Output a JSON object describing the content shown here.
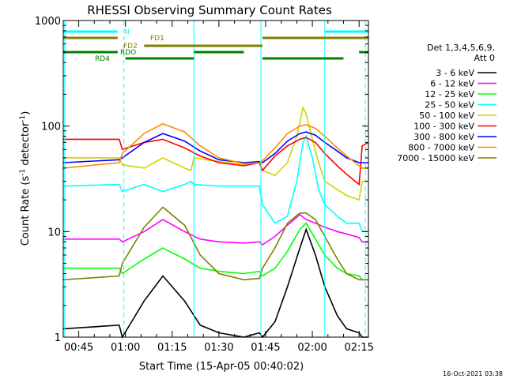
{
  "chart_data": {
    "type": "line",
    "title": "RHESSI Observing Summary Count Rates",
    "xlabel": "Start Time (15-Apr-05 00:40:02)",
    "ylabel": "Count Rate (s⁻¹ detector⁻¹)",
    "ylabel_parts": {
      "main": "Count Rate (s",
      "sup1": "-1",
      "mid": " detector",
      "sup2": "-1",
      "end": ")"
    },
    "yscale": "log",
    "ylim": [
      1,
      1000
    ],
    "xlim_minutes": [
      40.03,
      138.0
    ],
    "x_ticks": [
      {
        "label": "00:45",
        "m": 45
      },
      {
        "label": "01:00",
        "m": 60
      },
      {
        "label": "01:15",
        "m": 75
      },
      {
        "label": "01:30",
        "m": 90
      },
      {
        "label": "01:45",
        "m": 105
      },
      {
        "label": "02:00",
        "m": 120
      },
      {
        "label": "02:15",
        "m": 135
      }
    ],
    "y_ticks": [
      {
        "label": "1",
        "v": 1
      },
      {
        "label": "10",
        "v": 10
      },
      {
        "label": "100",
        "v": 100
      },
      {
        "label": "1000",
        "v": 1000
      }
    ],
    "legend_header": [
      "Det 1,3,4,5,6,9,",
      "Att 0"
    ],
    "legend_position": "right",
    "series": [
      {
        "name": "3 - 6 keV",
        "color": "#000000",
        "band": "3-6",
        "x": [
          40,
          58,
          59,
          66,
          72,
          79,
          84,
          90,
          98,
          103,
          104,
          108,
          112,
          116,
          118,
          121,
          124,
          128,
          131,
          135,
          136,
          138
        ],
        "values": [
          1.2,
          1.3,
          1.0,
          2.2,
          3.8,
          2.2,
          1.3,
          1.1,
          1.0,
          1.1,
          1.0,
          1.4,
          3.0,
          7.0,
          10.5,
          6.0,
          3.0,
          1.6,
          1.2,
          1.1,
          1.0,
          1.0
        ]
      },
      {
        "name": "6 - 12 keV",
        "color": "#ff00ff",
        "band": "6-12",
        "x": [
          40,
          58,
          59,
          66,
          72,
          79,
          84,
          90,
          98,
          103,
          104,
          108,
          112,
          116,
          118,
          121,
          124,
          128,
          131,
          135,
          136,
          138
        ],
        "values": [
          8.5,
          8.5,
          8.0,
          10.0,
          13.0,
          10.0,
          8.5,
          8.0,
          7.8,
          8.0,
          7.5,
          9.0,
          11.5,
          14.5,
          13.0,
          12.0,
          11.0,
          10.0,
          9.5,
          8.8,
          8.0,
          8.0
        ]
      },
      {
        "name": "12 - 25 keV",
        "color": "#00ff00",
        "band": "12-25",
        "x": [
          40,
          58,
          59,
          66,
          72,
          79,
          84,
          90,
          98,
          103,
          104,
          108,
          112,
          116,
          118,
          121,
          124,
          128,
          131,
          135,
          136,
          138
        ],
        "values": [
          4.5,
          4.5,
          4.0,
          5.5,
          7.0,
          5.5,
          4.5,
          4.2,
          4.0,
          4.2,
          3.8,
          4.5,
          6.5,
          10.5,
          12.0,
          8.5,
          6.0,
          4.5,
          4.0,
          3.8,
          3.5,
          3.5
        ]
      },
      {
        "name": "25 - 50 keV",
        "color": "#00ffff",
        "band": "25-50",
        "x": [
          40,
          58,
          59,
          66,
          72,
          79,
          81,
          82,
          90,
          98,
          103,
          104,
          108,
          112,
          115,
          117,
          118,
          120,
          122,
          124,
          128,
          131,
          135,
          136,
          138
        ],
        "values": [
          27,
          28,
          24,
          28,
          24,
          28,
          30,
          28,
          27,
          27,
          27,
          18,
          12,
          14,
          30,
          70,
          80,
          50,
          25,
          18,
          14,
          12,
          12,
          10,
          10
        ]
      },
      {
        "name": "50 - 100 keV",
        "color": "#d2d200",
        "band": "50-100",
        "x": [
          40,
          58,
          59,
          66,
          72,
          79,
          81,
          82,
          90,
          98,
          103,
          104,
          108,
          112,
          115,
          117,
          118,
          120,
          122,
          124,
          128,
          131,
          135,
          136,
          138
        ],
        "values": [
          50,
          50,
          43,
          40,
          50,
          40,
          38,
          50,
          46,
          43,
          45,
          38,
          34,
          45,
          80,
          150,
          130,
          75,
          45,
          30,
          25,
          22,
          20,
          30,
          30
        ]
      },
      {
        "name": "100 - 300 keV",
        "color": "#ff0000",
        "band": "100-300",
        "x": [
          40,
          58,
          59,
          66,
          72,
          79,
          84,
          90,
          98,
          103,
          104,
          108,
          112,
          116,
          118,
          121,
          124,
          128,
          131,
          135,
          136,
          138
        ],
        "values": [
          75,
          75,
          60,
          70,
          75,
          62,
          52,
          45,
          42,
          45,
          38,
          52,
          65,
          75,
          78,
          70,
          55,
          42,
          35,
          28,
          65,
          70
        ]
      },
      {
        "name": "300 - 800 keV",
        "color": "#0000ff",
        "band": "300-800",
        "x": [
          40,
          58,
          59,
          66,
          72,
          79,
          84,
          90,
          98,
          103,
          104,
          108,
          112,
          116,
          118,
          121,
          124,
          128,
          131,
          135,
          136,
          138
        ],
        "values": [
          45,
          48,
          50,
          70,
          85,
          72,
          58,
          48,
          45,
          46,
          45,
          55,
          72,
          85,
          88,
          82,
          70,
          58,
          50,
          45,
          45,
          45
        ]
      },
      {
        "name": "800 - 7000 keV",
        "color": "#ff8c00",
        "band": "800-7000",
        "x": [
          40,
          58,
          59,
          66,
          72,
          79,
          84,
          90,
          98,
          103,
          104,
          108,
          112,
          116,
          118,
          121,
          124,
          128,
          131,
          135,
          136,
          138
        ],
        "values": [
          40,
          45,
          55,
          85,
          105,
          88,
          65,
          50,
          44,
          45,
          47,
          62,
          85,
          100,
          103,
          95,
          80,
          62,
          52,
          42,
          40,
          40
        ]
      },
      {
        "name": "7000 - 15000 keV",
        "color": "#808000",
        "band": "7000-15000",
        "x": [
          40,
          58,
          59,
          66,
          72,
          79,
          84,
          90,
          98,
          103,
          104,
          108,
          112,
          116,
          118,
          121,
          124,
          128,
          131,
          135,
          136,
          138
        ],
        "values": [
          3.5,
          3.8,
          5.0,
          11.0,
          17.0,
          11.5,
          6.0,
          4.0,
          3.5,
          3.6,
          4.5,
          7.0,
          12.0,
          15.0,
          15.0,
          13.0,
          9.0,
          5.5,
          4.0,
          3.5,
          3.5,
          3.5
        ]
      }
    ],
    "flags": [
      {
        "label": "N",
        "color": "#00ffff",
        "segments": [
          [
            40,
            57.5
          ],
          [
            124,
            138
          ]
        ]
      },
      {
        "label": "FD1",
        "color": "#808000",
        "segments": [
          [
            40,
            57.5
          ],
          [
            104,
            138
          ]
        ]
      },
      {
        "label": "FD2",
        "color": "#808000",
        "segments": [
          [
            66,
            104
          ]
        ]
      },
      {
        "label": "RDO",
        "color": "#008000",
        "segments": [
          [
            40,
            57.5
          ],
          [
            82,
            98
          ],
          [
            135,
            138
          ]
        ]
      },
      {
        "label": "RD4",
        "color": "#008000",
        "segments": [
          [
            60,
            82
          ],
          [
            104,
            130
          ]
        ]
      }
    ],
    "vertical_markers": {
      "color": "#00ffff",
      "solid": [
        40.5,
        82.0,
        103.5,
        124.0
      ],
      "dashed": [
        59.5,
        137.0
      ]
    },
    "timestamp": "16-Oct-2021 03:38"
  }
}
